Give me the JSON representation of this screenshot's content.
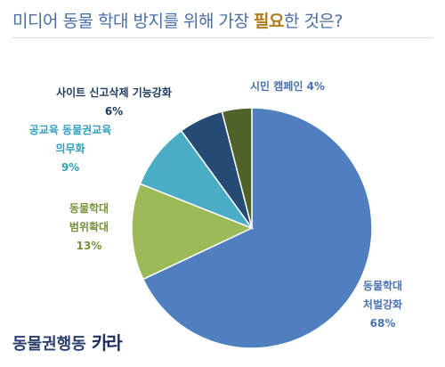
{
  "title": {
    "part1": "미디어 동물 학대 방지를 위해 가장 ",
    "highlight": "필요",
    "part2": "한 것은?"
  },
  "brand": {
    "name": "동물권행동",
    "logo": "카라"
  },
  "chart_data": {
    "type": "pie",
    "title": "미디어 동물 학대 방지를 위해 가장 필요한 것은?",
    "slices": [
      {
        "label_lines": [
          "동물학대",
          "처벌강화"
        ],
        "value": 68,
        "value_text": "68%",
        "color": "#4f7fbf",
        "label_color": "#4a72b0"
      },
      {
        "label_lines": [
          "동물학대",
          "범위확대"
        ],
        "value": 13,
        "value_text": "13%",
        "color": "#9bbb59",
        "label_color": "#76923c"
      },
      {
        "label_lines": [
          "공교육 동물권교육",
          "의무화"
        ],
        "value": 9,
        "value_text": "9%",
        "color": "#4bacc6",
        "label_color": "#31a0c0"
      },
      {
        "label_lines": [
          "사이트 신고삭제 기능강화"
        ],
        "value": 6,
        "value_text": "6%",
        "color": "#254a74",
        "label_color": "#1f3a5f"
      },
      {
        "label_lines": [
          "시민 캠페인"
        ],
        "value": 4,
        "value_text": "4%",
        "color": "#4f6228",
        "label_color": "#4a72b0"
      }
    ]
  }
}
